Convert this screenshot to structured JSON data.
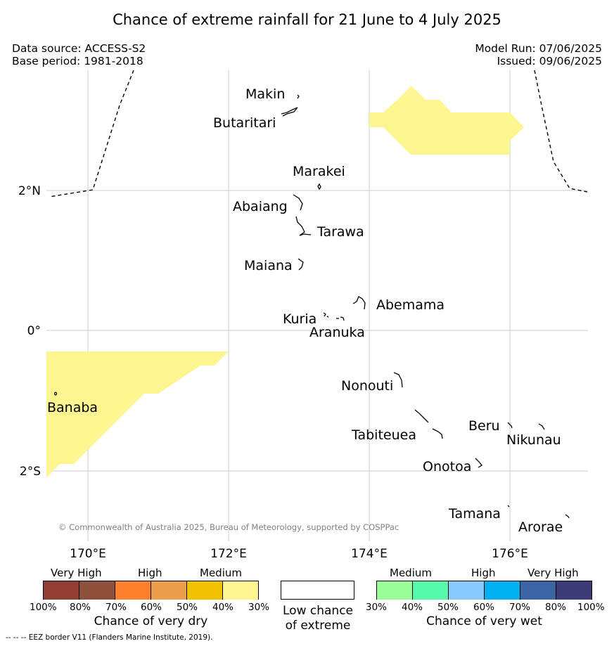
{
  "title": "Chance of extreme rainfall for 21 June to 4 July 2025",
  "meta": {
    "data_source": "Data source: ACCESS-S2",
    "base_period": "Base period: 1981-2018",
    "model_run": "Model Run: 07/06/2025",
    "issued": "Issued: 09/06/2025"
  },
  "map": {
    "lat_labels": [
      "2°N",
      "0°",
      "2°S"
    ],
    "lon_labels": [
      "170°E",
      "172°E",
      "174°E",
      "176°E"
    ],
    "islands": {
      "makin": "Makin",
      "butaritari": "Butaritari",
      "marakei": "Marakei",
      "abaiang": "Abaiang",
      "tarawa": "Tarawa",
      "maiana": "Maiana",
      "abemama": "Abemama",
      "kuria": "Kuria",
      "aranuka": "Aranuka",
      "nonouti": "Nonouti",
      "banaba": "Banaba",
      "tabiteuea": "Tabiteuea",
      "beru": "Beru",
      "nikunau": "Nikunau",
      "onotoa": "Onotoa",
      "tamana": "Tamana",
      "arorae": "Arorae"
    },
    "copyright": "© Commonwealth of Australia 2025, Bureau of Meteorology, supported by COSPPac",
    "colors": {
      "dry_medium_fill": "#fdf58f",
      "eez_border": "#000000",
      "gridline": "#cccccc",
      "copyright_text": "#808080"
    }
  },
  "legend": {
    "dry": {
      "headers": [
        "Very High",
        "High",
        "Medium"
      ],
      "ticks": [
        "100%",
        "80%",
        "70%",
        "60%",
        "50%",
        "40%",
        "30%"
      ],
      "colors": [
        "#913f35",
        "#8e4f3c",
        "#fd812d",
        "#eb9d4c",
        "#f0c300",
        "#fdf58f"
      ],
      "caption": "Chance of very dry"
    },
    "low": {
      "caption_line1": "Low chance",
      "caption_line2": "of extreme",
      "color": "#ffffff"
    },
    "wet": {
      "headers": [
        "Medium",
        "High",
        "Very High"
      ],
      "ticks": [
        "30%",
        "40%",
        "50%",
        "60%",
        "70%",
        "80%",
        "100%"
      ],
      "colors": [
        "#9afd97",
        "#56f9ab",
        "#89cafe",
        "#00b0f0",
        "#3b64a2",
        "#3d3b78"
      ],
      "caption": "Chance of very wet"
    }
  },
  "footnote": "--  --  -- EEZ border V11 (Flanders Marine Institute, 2019)."
}
